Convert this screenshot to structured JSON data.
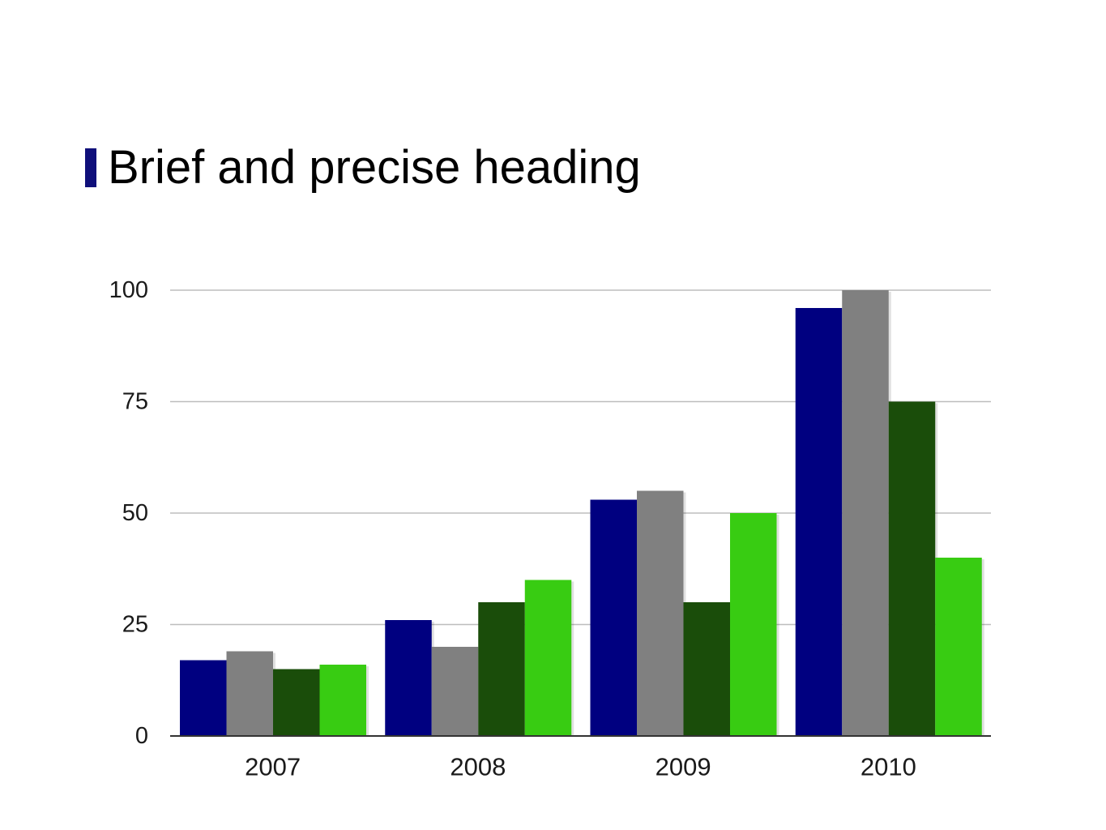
{
  "slide": {
    "heading": "Brief and precise heading",
    "marker_color": "#0f0f7a"
  },
  "chart_data": {
    "type": "bar",
    "categories": [
      "2007",
      "2008",
      "2009",
      "2010"
    ],
    "series": [
      {
        "values": [
          17,
          26,
          53,
          96
        ],
        "color": "#000080"
      },
      {
        "values": [
          19,
          20,
          55,
          100
        ],
        "color": "#808080"
      },
      {
        "values": [
          15,
          30,
          30,
          75
        ],
        "color": "#1a4d0a"
      },
      {
        "values": [
          16,
          35,
          50,
          40
        ],
        "color": "#38cc12"
      }
    ],
    "yticks": [
      0,
      25,
      50,
      75,
      100
    ],
    "ylim": [
      0,
      100
    ],
    "grid": true,
    "legend": "none",
    "title": "",
    "xlabel": "",
    "ylabel": ""
  }
}
